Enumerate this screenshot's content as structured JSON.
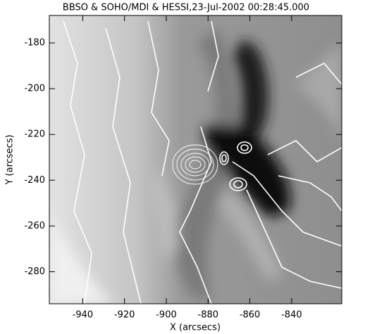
{
  "chart_data": {
    "type": "image",
    "title": "BBSO & SOHO/MDI & HESSI,23-Jul-2002 00:28:45.000",
    "xlabel": "X (arcsecs)",
    "ylabel": "Y (arcsecs)",
    "xlim": [
      -956,
      -816
    ],
    "ylim": [
      -294,
      -168
    ],
    "xticks": [
      -940,
      -920,
      -900,
      -880,
      -860,
      -840
    ],
    "yticks": [
      -280,
      -260,
      -240,
      -220,
      -200,
      -180
    ]
  }
}
